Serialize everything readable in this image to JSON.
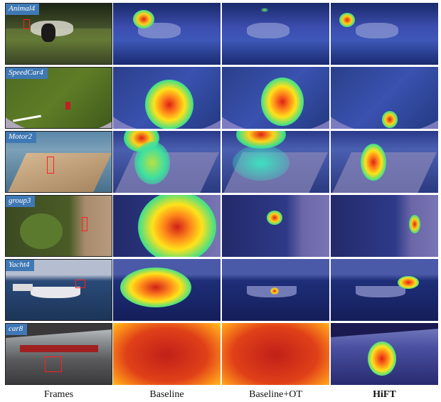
{
  "sequences": [
    "Animal4",
    "SpeedCar4",
    "Motor2",
    "group3",
    "Yacht4",
    "car8"
  ],
  "columns": [
    "Frames",
    "Baseline",
    "Baseline+OT",
    "HiFT"
  ]
}
